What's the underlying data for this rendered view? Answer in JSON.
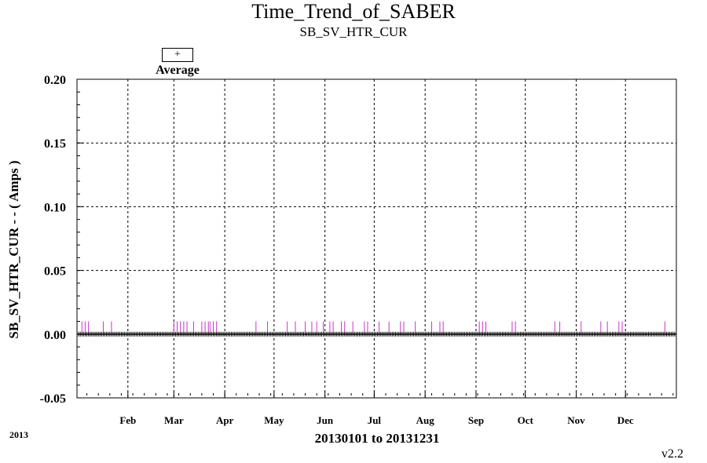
{
  "page": {
    "title": "Time_Trend_of_SABER",
    "subtitle": "SB_SV_HTR_CUR",
    "legend_symbol": "+",
    "legend_label": "Average",
    "year_label": "2013",
    "version": "v2.2"
  },
  "chart_data": {
    "type": "line",
    "title": "Time_Trend_of_SABER",
    "subtitle": "SB_SV_HTR_CUR",
    "xlabel": "20130101 to 20131231",
    "ylabel": "SB_SV_HTR_CUR  - - ( Amps )",
    "xlim": [
      "2013-01-01",
      "2013-12-31"
    ],
    "ylim": [
      -0.05,
      0.2
    ],
    "y_ticks": [
      "0.20",
      "0.15",
      "0.10",
      "0.05",
      "0.00",
      "-0.05"
    ],
    "x_ticks": [
      "Feb",
      "Mar",
      "Apr",
      "May",
      "Jun",
      "Jul",
      "Aug",
      "Sep",
      "Oct",
      "Nov",
      "Dec"
    ],
    "x_tick_dates": [
      "2013-02-01",
      "2013-03-01",
      "2013-04-01",
      "2013-05-01",
      "2013-06-01",
      "2013-07-01",
      "2013-08-01",
      "2013-09-01",
      "2013-10-01",
      "2013-11-01",
      "2013-12-01"
    ],
    "grid": true,
    "legend": "top-left",
    "series": [
      {
        "name": "Average",
        "color": "#000000",
        "marker": "+",
        "y": 0.0,
        "x_range": [
          "2013-01-02",
          "2013-12-31"
        ]
      }
    ],
    "spikes": {
      "color": "#cc33cc",
      "y": 0.01,
      "x": [
        "2013-01-04",
        "2013-01-06",
        "2013-01-08",
        "2013-01-17",
        "2013-01-22",
        "2013-03-01",
        "2013-03-03",
        "2013-03-05",
        "2013-03-07",
        "2013-03-09",
        "2013-03-13",
        "2013-03-18",
        "2013-03-20",
        "2013-03-22",
        "2013-03-23",
        "2013-03-25",
        "2013-03-27",
        "2013-04-20",
        "2013-04-27",
        "2013-05-09",
        "2013-05-14",
        "2013-05-20",
        "2013-05-24",
        "2013-05-27",
        "2013-05-31",
        "2013-06-04",
        "2013-06-06",
        "2013-06-11",
        "2013-06-13",
        "2013-06-18",
        "2013-06-25",
        "2013-06-27",
        "2013-07-04",
        "2013-07-10",
        "2013-07-17",
        "2013-07-19",
        "2013-07-26",
        "2013-08-05",
        "2013-08-10",
        "2013-08-12",
        "2013-09-03",
        "2013-09-05",
        "2013-09-07",
        "2013-09-23",
        "2013-09-25",
        "2013-10-19",
        "2013-10-22",
        "2013-11-04",
        "2013-11-16",
        "2013-11-20",
        "2013-11-27",
        "2013-11-29",
        "2013-12-25"
      ]
    }
  }
}
